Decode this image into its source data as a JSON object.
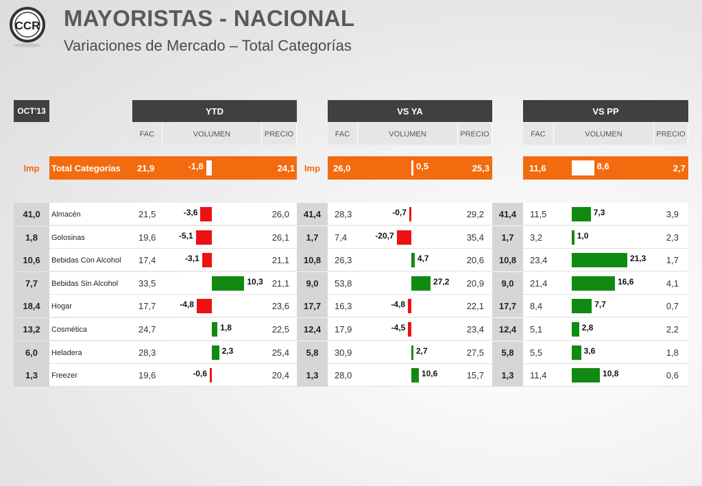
{
  "header": {
    "logo_text": "CCR",
    "title": "MAYORISTAS - NACIONAL",
    "subtitle": "Variaciones de Mercado – Total  Categorías"
  },
  "colors": {
    "accent": "#f26b0f",
    "positive": "#108a10",
    "negative": "#ee1111",
    "header_dark": "#404040"
  },
  "period_label": "OCT'13",
  "sections": [
    {
      "title": "YTD",
      "cols": [
        "FAC",
        "VOLUMEN",
        "PRECIO"
      ]
    },
    {
      "title": "VS YA",
      "cols": [
        "FAC",
        "VOLUMEN",
        "PRECIO"
      ]
    },
    {
      "title": "VS PP",
      "cols": [
        "FAC",
        "VOLUMEN",
        "PRECIO"
      ]
    }
  ],
  "total": {
    "imp_label": "Imp",
    "name": "Total  Categorías",
    "ytd": {
      "fac": "21,9",
      "vol": -1.8,
      "vol_label": "-1,8",
      "precio": "24,1"
    },
    "vsya": {
      "imp_label": "Imp",
      "fac": "26,0",
      "vol": 0.5,
      "vol_label": "0,5",
      "precio": "25,3"
    },
    "vspp": {
      "fac": "11,6",
      "vol": 8.6,
      "vol_label": "8,6",
      "precio": "2,7"
    }
  },
  "rows": [
    {
      "imp_ytd": "41,0",
      "name": "Almacén",
      "ytd": {
        "fac": "21,5",
        "vol": -3.6,
        "vol_label": "-3,6",
        "precio": "26,0"
      },
      "imp_ya": "41,4",
      "vsya": {
        "fac": "28,3",
        "vol": -0.7,
        "vol_label": "-0,7",
        "precio": "29,2"
      },
      "imp_pp": "41,4",
      "vspp": {
        "fac": "11,5",
        "vol": 7.3,
        "vol_label": "7,3",
        "precio": "3,9"
      }
    },
    {
      "imp_ytd": "1,8",
      "name": "Golosinas",
      "ytd": {
        "fac": "19,6",
        "vol": -5.1,
        "vol_label": "-5,1",
        "precio": "26,1"
      },
      "imp_ya": "1,7",
      "vsya": {
        "fac": "7,4",
        "vol": -20.7,
        "vol_label": "-20,7",
        "precio": "35,4"
      },
      "imp_pp": "1,7",
      "vspp": {
        "fac": "3,2",
        "vol": 1.0,
        "vol_label": "1,0",
        "precio": "2,3"
      }
    },
    {
      "imp_ytd": "10,6",
      "name": "Bebidas Con Alcohol",
      "ytd": {
        "fac": "17,4",
        "vol": -3.1,
        "vol_label": "-3,1",
        "precio": "21,1"
      },
      "imp_ya": "10,8",
      "vsya": {
        "fac": "26,3",
        "vol": 4.7,
        "vol_label": "4,7",
        "precio": "20,6"
      },
      "imp_pp": "10,8",
      "vspp": {
        "fac": "23,4",
        "vol": 21.3,
        "vol_label": "21,3",
        "precio": "1,7"
      }
    },
    {
      "imp_ytd": "7,7",
      "name": "Bebidas Sin Alcohol",
      "ytd": {
        "fac": "33,5",
        "vol": 10.3,
        "vol_label": "10,3",
        "precio": "21,1"
      },
      "imp_ya": "9,0",
      "vsya": {
        "fac": "53,8",
        "vol": 27.2,
        "vol_label": "27,2",
        "precio": "20,9"
      },
      "imp_pp": "9,0",
      "vspp": {
        "fac": "21,4",
        "vol": 16.6,
        "vol_label": "16,6",
        "precio": "4,1"
      }
    },
    {
      "imp_ytd": "18,4",
      "name": "Hogar",
      "ytd": {
        "fac": "17,7",
        "vol": -4.8,
        "vol_label": "-4,8",
        "precio": "23,6"
      },
      "imp_ya": "17,7",
      "vsya": {
        "fac": "16,3",
        "vol": -4.8,
        "vol_label": "-4,8",
        "precio": "22,1"
      },
      "imp_pp": "17,7",
      "vspp": {
        "fac": "8,4",
        "vol": 7.7,
        "vol_label": "7,7",
        "precio": "0,7"
      }
    },
    {
      "imp_ytd": "13,2",
      "name": "Cosmética",
      "ytd": {
        "fac": "24,7",
        "vol": 1.8,
        "vol_label": "1,8",
        "precio": "22,5"
      },
      "imp_ya": "12,4",
      "vsya": {
        "fac": "17,9",
        "vol": -4.5,
        "vol_label": "-4,5",
        "precio": "23,4"
      },
      "imp_pp": "12,4",
      "vspp": {
        "fac": "5,1",
        "vol": 2.8,
        "vol_label": "2,8",
        "precio": "2,2"
      }
    },
    {
      "imp_ytd": "6,0",
      "name": "Heladera",
      "ytd": {
        "fac": "28,3",
        "vol": 2.3,
        "vol_label": "2,3",
        "precio": "25,4"
      },
      "imp_ya": "5,8",
      "vsya": {
        "fac": "30,9",
        "vol": 2.7,
        "vol_label": "2,7",
        "precio": "27,5"
      },
      "imp_pp": "5,8",
      "vspp": {
        "fac": "5,5",
        "vol": 3.6,
        "vol_label": "3,6",
        "precio": "1,8"
      }
    },
    {
      "imp_ytd": "1,3",
      "name": "Freezer",
      "ytd": {
        "fac": "19,6",
        "vol": -0.6,
        "vol_label": "-0,6",
        "precio": "20,4"
      },
      "imp_ya": "1,3",
      "vsya": {
        "fac": "28,0",
        "vol": 10.6,
        "vol_label": "10,6",
        "precio": "15,7"
      },
      "imp_pp": "1,3",
      "vspp": {
        "fac": "11,4",
        "vol": 10.8,
        "vol_label": "10,8",
        "precio": "0,6"
      }
    }
  ]
}
